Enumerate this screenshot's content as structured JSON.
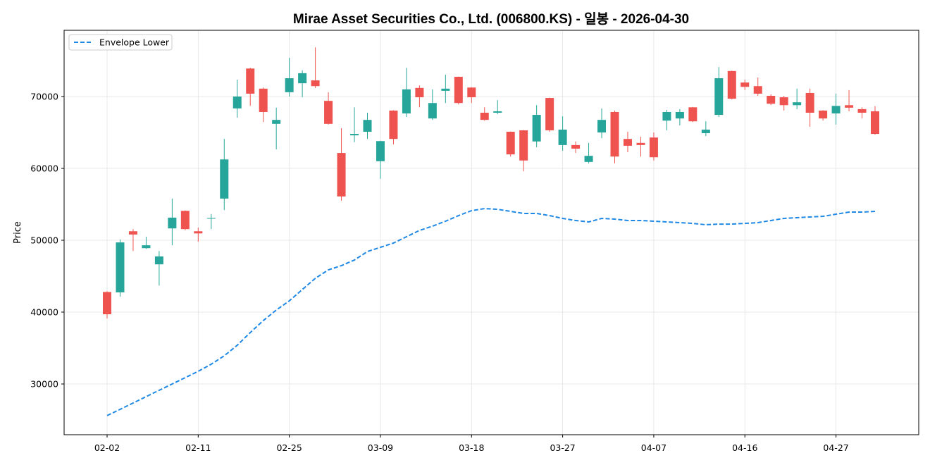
{
  "colors": {
    "up": "#26a69a",
    "down": "#ef5350",
    "envelope_lower": "#1e88e5",
    "grid": "#e3e3e3",
    "frame": "#000000"
  },
  "chart_data": {
    "type": "candlestick",
    "title": "Mirae Asset Securities Co., Ltd. (006800.KS) - 일봉 - 2026-04-30",
    "xlabel": "",
    "ylabel": "Price",
    "ylim": [
      22940,
      79220
    ],
    "y_ticks": [
      30000,
      40000,
      50000,
      60000,
      70000
    ],
    "x_ticks": [
      "02-02",
      "02-11",
      "02-25",
      "03-09",
      "03-18",
      "03-27",
      "04-07",
      "04-16",
      "04-27"
    ],
    "grid": true,
    "legend": "upper left",
    "x": [
      "02-02",
      "02-03",
      "02-04",
      "02-05",
      "02-06",
      "02-09",
      "02-10",
      "02-11",
      "02-12",
      "02-13",
      "02-19",
      "02-20",
      "02-23",
      "02-24",
      "02-25",
      "02-26",
      "02-27",
      "03-03",
      "03-04",
      "03-05",
      "03-06",
      "03-09",
      "03-10",
      "03-11",
      "03-12",
      "03-13",
      "03-16",
      "03-17",
      "03-18",
      "03-19",
      "03-20",
      "03-23",
      "03-24",
      "03-25",
      "03-26",
      "03-27",
      "03-30",
      "03-31",
      "04-01",
      "04-02",
      "04-03",
      "04-06",
      "04-07",
      "04-08",
      "04-09",
      "04-10",
      "04-13",
      "04-14",
      "04-15",
      "04-16",
      "04-17",
      "04-20",
      "04-21",
      "04-22",
      "04-23",
      "04-24",
      "04-27",
      "04-28",
      "04-29",
      "04-30"
    ],
    "open": [
      42800,
      42750,
      51250,
      48900,
      46650,
      51650,
      54100,
      51250,
      53000,
      55800,
      68350,
      73900,
      71100,
      66200,
      70600,
      71850,
      72250,
      69400,
      62150,
      64600,
      65100,
      61000,
      68050,
      67650,
      71200,
      66950,
      70800,
      72750,
      71250,
      67750,
      67750,
      65100,
      65300,
      63750,
      69800,
      63250,
      63250,
      60900,
      65000,
      67850,
      64100,
      63550,
      64300,
      66650,
      66950,
      68500,
      64900,
      67450,
      73550,
      71950,
      71450,
      70100,
      69900,
      68800,
      70500,
      68050,
      67650,
      68800,
      68250,
      67950
    ],
    "high": [
      42900,
      50100,
      51550,
      50500,
      48500,
      55800,
      54150,
      51750,
      53650,
      64100,
      72350,
      74000,
      71250,
      68450,
      75400,
      73650,
      76850,
      70600,
      65600,
      68500,
      67750,
      63850,
      68100,
      74000,
      71550,
      71000,
      73050,
      72800,
      71300,
      68500,
      69500,
      65150,
      65350,
      68800,
      69850,
      67250,
      63750,
      63550,
      68350,
      68050,
      65100,
      64400,
      65000,
      68150,
      68250,
      68550,
      66550,
      74100,
      73600,
      72350,
      72650,
      70300,
      70100,
      71100,
      71100,
      68100,
      70400,
      70900,
      68500,
      68650
    ],
    "low": [
      39100,
      42150,
      48500,
      48800,
      43700,
      49300,
      51400,
      49800,
      51550,
      54200,
      67050,
      68700,
      66450,
      62650,
      70000,
      69900,
      71200,
      66100,
      55500,
      63650,
      64100,
      58550,
      63350,
      67150,
      68500,
      66750,
      69100,
      68900,
      69100,
      66650,
      67550,
      61650,
      59600,
      62950,
      65100,
      62450,
      62150,
      60700,
      64200,
      60700,
      62250,
      61650,
      61100,
      65300,
      66000,
      66450,
      64500,
      67150,
      69600,
      70900,
      70100,
      68800,
      68050,
      68250,
      65800,
      66650,
      66100,
      67950,
      66950,
      64700
    ],
    "close": [
      39700,
      49700,
      50800,
      49300,
      47750,
      53150,
      51550,
      50950,
      53100,
      61250,
      70000,
      70400,
      67850,
      66750,
      72550,
      73250,
      71450,
      66200,
      56100,
      64800,
      66750,
      63800,
      64100,
      71000,
      69900,
      69100,
      71100,
      69100,
      69900,
      66750,
      67950,
      61950,
      61100,
      67450,
      65300,
      65400,
      62750,
      61750,
      66750,
      61650,
      63150,
      63250,
      61550,
      67850,
      67850,
      66550,
      65400,
      72550,
      69700,
      71350,
      70400,
      69000,
      68800,
      69200,
      67750,
      66950,
      68700,
      68450,
      67750,
      64800
    ],
    "series": [
      {
        "name": "Envelope Lower",
        "style": "dashed",
        "values": [
          25600,
          26470,
          27350,
          28240,
          29120,
          30000,
          30880,
          31760,
          32750,
          33920,
          35390,
          37160,
          38820,
          40290,
          41570,
          43140,
          44710,
          45880,
          46470,
          47250,
          48430,
          49020,
          49610,
          50490,
          51370,
          51960,
          52650,
          53430,
          54120,
          54410,
          54310,
          54020,
          53730,
          53730,
          53430,
          53040,
          52750,
          52550,
          53040,
          52940,
          52750,
          52750,
          52650,
          52550,
          52450,
          52350,
          52160,
          52250,
          52250,
          52350,
          52450,
          52750,
          53040,
          53140,
          53240,
          53330,
          53630,
          53920,
          53920,
          54020
        ]
      }
    ]
  }
}
